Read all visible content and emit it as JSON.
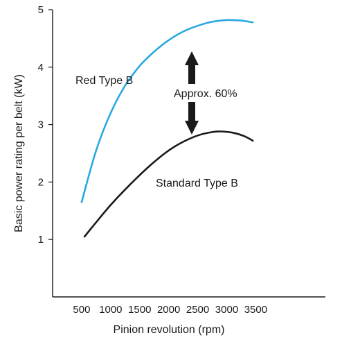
{
  "chart_data": {
    "type": "line",
    "title": "",
    "xlabel": "Pinion revolution (rpm)",
    "ylabel": "Basic power rating per belt (kW)",
    "xlim": [
      0,
      4700
    ],
    "ylim": [
      0,
      5
    ],
    "x_ticks": [
      500,
      1000,
      1500,
      2000,
      2500,
      3000,
      3500
    ],
    "x_tick_labels": [
      "500",
      "1000",
      "1500",
      "2000",
      "2500",
      "3000",
      "3500"
    ],
    "y_ticks": [
      1,
      2,
      3,
      4,
      5
    ],
    "y_tick_labels": [
      "1",
      "2",
      "3",
      "4",
      "5"
    ],
    "grid": false,
    "series": [
      {
        "name": "Red Type B",
        "color": "#29a8e0",
        "x": [
          500,
          750,
          1000,
          1250,
          1500,
          1750,
          2000,
          2250,
          2500,
          2750,
          3000,
          3250,
          3450
        ],
        "y": [
          1.65,
          2.55,
          3.2,
          3.68,
          4.02,
          4.27,
          4.47,
          4.62,
          4.72,
          4.79,
          4.82,
          4.81,
          4.78
        ]
      },
      {
        "name": "Standard Type B",
        "color": "#1a1a1a",
        "x": [
          550,
          750,
          1000,
          1250,
          1500,
          1750,
          2000,
          2250,
          2500,
          2750,
          2900,
          3100,
          3300,
          3450
        ],
        "y": [
          1.05,
          1.3,
          1.6,
          1.87,
          2.12,
          2.35,
          2.55,
          2.7,
          2.81,
          2.87,
          2.88,
          2.86,
          2.8,
          2.72
        ]
      }
    ],
    "annotations": [
      {
        "text": "Red Type B",
        "series": "Red Type B"
      },
      {
        "text": "Standard Type B",
        "series": "Standard Type B"
      },
      {
        "text": "Approx. 60%",
        "arrow": "double-vertical",
        "x": 2500,
        "y_from": 2.88,
        "y_to": 4.72
      }
    ]
  }
}
